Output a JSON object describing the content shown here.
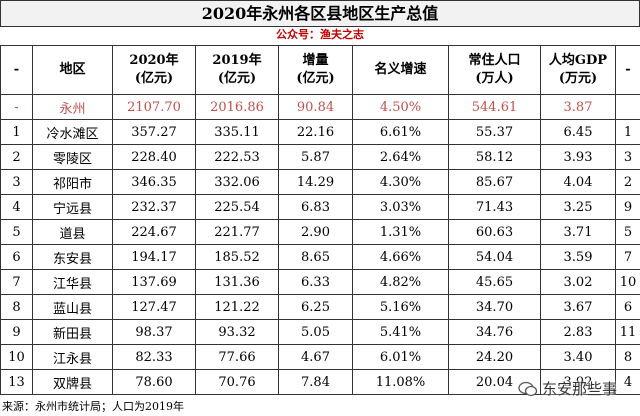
{
  "title": "2020年永州各区县地区生产总值",
  "subtitle": "公众号：渔夫之志",
  "table": {
    "header": [
      [
        "-"
      ],
      [
        "地区"
      ],
      [
        "2020年",
        "(亿元)"
      ],
      [
        "2019年",
        "(亿元)"
      ],
      [
        "增量",
        "(亿元)"
      ],
      [
        "名义增速"
      ],
      [
        "常住人口",
        "(万人)"
      ],
      [
        "人均GDP",
        "(万元)"
      ],
      [
        "-"
      ]
    ],
    "rows": [
      [
        "-",
        "永州",
        "2107.70",
        "2016.86",
        "90.84",
        "4.50%",
        "544.61",
        "3.87",
        null
      ],
      [
        "1",
        "冷水滩区",
        "357.27",
        "335.11",
        "22.16",
        "6.61%",
        "55.37",
        "6.45",
        "1"
      ],
      [
        "2",
        "零陵区",
        "228.40",
        "222.53",
        "5.87",
        "2.64%",
        "58.12",
        "3.93",
        "3"
      ],
      [
        "3",
        "祁阳市",
        "346.35",
        "332.06",
        "14.29",
        "4.30%",
        "85.67",
        "4.04",
        "2"
      ],
      [
        "4",
        "宁远县",
        "232.37",
        "225.54",
        "6.83",
        "3.03%",
        "71.43",
        "3.25",
        "9"
      ],
      [
        "5",
        "道县",
        "224.67",
        "221.77",
        "2.90",
        "1.31%",
        "60.63",
        "3.71",
        "5"
      ],
      [
        "6",
        "东安县",
        "194.17",
        "185.52",
        "8.65",
        "4.66%",
        "54.04",
        "3.59",
        "7"
      ],
      [
        "7",
        "江华县",
        "137.69",
        "131.36",
        "6.33",
        "4.82%",
        "45.65",
        "3.02",
        "10"
      ],
      [
        "8",
        "蓝山县",
        "127.47",
        "121.22",
        "6.25",
        "5.16%",
        "34.70",
        "3.67",
        "6"
      ],
      [
        "9",
        "新田县",
        "98.37",
        "93.32",
        "5.05",
        "5.41%",
        "34.76",
        "2.83",
        "11"
      ],
      [
        "10",
        "江永县",
        "82.33",
        "77.66",
        "4.67",
        "6.01%",
        "24.20",
        "3.40",
        "8"
      ],
      [
        "13",
        "双牌县",
        "78.60",
        "70.76",
        "7.84",
        "11.08%",
        "20.04",
        "3.92",
        "4"
      ]
    ]
  },
  "footer": "来源：永州市统计局；人口为2019年",
  "watermark": "东安那些事"
}
